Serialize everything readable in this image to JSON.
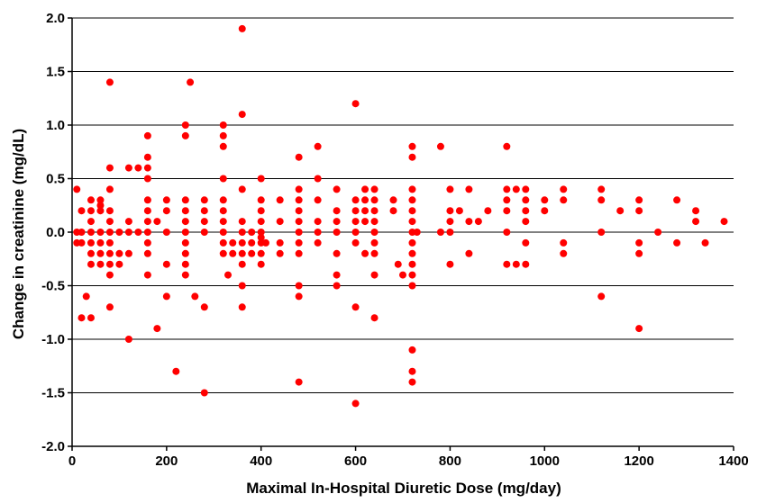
{
  "chart_data": {
    "type": "scatter",
    "title": "",
    "xlabel": "Maximal In-Hospital Diuretic Dose (mg/day)",
    "ylabel": "Change in creatinine (mg/dL)",
    "xlim": [
      0,
      1400
    ],
    "ylim": [
      -2.0,
      2.0
    ],
    "x_ticks": [
      "0",
      "200",
      "400",
      "600",
      "800",
      "1000",
      "1200",
      "1400"
    ],
    "y_ticks": [
      "2.0",
      "1.5",
      "1.0",
      "0.5",
      "0.0",
      "-0.5",
      "-1.0",
      "-1.5",
      "-2.0"
    ],
    "grid": "horizontal",
    "legend": "none",
    "marker_color": "#ff0000",
    "series": [
      {
        "points": [
          [
            10,
            0.4
          ],
          [
            10,
            0.0
          ],
          [
            10,
            -0.1
          ],
          [
            20,
            0.0
          ],
          [
            20,
            -0.1
          ],
          [
            20,
            -0.8
          ],
          [
            20,
            0.2
          ],
          [
            30,
            -0.6
          ],
          [
            40,
            -0.8
          ],
          [
            40,
            0.3
          ],
          [
            40,
            0.2
          ],
          [
            40,
            0.1
          ],
          [
            40,
            0.0
          ],
          [
            40,
            -0.1
          ],
          [
            40,
            -0.2
          ],
          [
            40,
            -0.3
          ],
          [
            60,
            0.25
          ],
          [
            60,
            0.2
          ],
          [
            60,
            0.0
          ],
          [
            60,
            -0.1
          ],
          [
            60,
            -0.2
          ],
          [
            60,
            -0.3
          ],
          [
            60,
            0.3
          ],
          [
            80,
            1.4
          ],
          [
            80,
            0.6
          ],
          [
            80,
            0.4
          ],
          [
            80,
            0.2
          ],
          [
            80,
            0.1
          ],
          [
            80,
            0.0
          ],
          [
            80,
            -0.1
          ],
          [
            80,
            -0.2
          ],
          [
            80,
            -0.3
          ],
          [
            80,
            -0.4
          ],
          [
            80,
            -0.7
          ],
          [
            100,
            0.0
          ],
          [
            100,
            -0.2
          ],
          [
            100,
            -0.3
          ],
          [
            120,
            0.6
          ],
          [
            120,
            0.1
          ],
          [
            120,
            0.0
          ],
          [
            120,
            -0.2
          ],
          [
            120,
            -1.0
          ],
          [
            140,
            0.6
          ],
          [
            140,
            0.0
          ],
          [
            160,
            0.9
          ],
          [
            160,
            0.7
          ],
          [
            160,
            0.6
          ],
          [
            160,
            0.5
          ],
          [
            160,
            0.3
          ],
          [
            160,
            0.2
          ],
          [
            160,
            0.1
          ],
          [
            160,
            0.0
          ],
          [
            160,
            -0.1
          ],
          [
            160,
            -0.2
          ],
          [
            160,
            -0.4
          ],
          [
            180,
            0.1
          ],
          [
            180,
            -0.9
          ],
          [
            200,
            0.3
          ],
          [
            200,
            0.2
          ],
          [
            200,
            0.0
          ],
          [
            200,
            -0.3
          ],
          [
            200,
            -0.6
          ],
          [
            220,
            -1.3
          ],
          [
            240,
            1.0
          ],
          [
            240,
            0.9
          ],
          [
            240,
            0.3
          ],
          [
            240,
            0.2
          ],
          [
            240,
            0.1
          ],
          [
            240,
            0.0
          ],
          [
            240,
            -0.1
          ],
          [
            240,
            -0.2
          ],
          [
            240,
            -0.3
          ],
          [
            240,
            -0.4
          ],
          [
            250,
            1.4
          ],
          [
            260,
            -0.6
          ],
          [
            280,
            0.3
          ],
          [
            280,
            0.2
          ],
          [
            280,
            0.1
          ],
          [
            280,
            0.0
          ],
          [
            280,
            -0.7
          ],
          [
            280,
            -1.5
          ],
          [
            320,
            1.0
          ],
          [
            320,
            0.9
          ],
          [
            320,
            0.8
          ],
          [
            320,
            0.5
          ],
          [
            320,
            0.3
          ],
          [
            320,
            0.2
          ],
          [
            320,
            0.1
          ],
          [
            320,
            0.0
          ],
          [
            320,
            -0.1
          ],
          [
            320,
            -0.2
          ],
          [
            330,
            -0.4
          ],
          [
            340,
            -0.1
          ],
          [
            340,
            -0.2
          ],
          [
            360,
            1.9
          ],
          [
            360,
            1.1
          ],
          [
            360,
            0.4
          ],
          [
            360,
            0.1
          ],
          [
            360,
            0.0
          ],
          [
            360,
            -0.1
          ],
          [
            360,
            -0.2
          ],
          [
            360,
            -0.3
          ],
          [
            360,
            -0.5
          ],
          [
            360,
            -0.7
          ],
          [
            380,
            0.0
          ],
          [
            380,
            -0.1
          ],
          [
            380,
            -0.2
          ],
          [
            400,
            0.5
          ],
          [
            400,
            0.3
          ],
          [
            400,
            0.2
          ],
          [
            400,
            0.1
          ],
          [
            400,
            0.0
          ],
          [
            400,
            -0.05
          ],
          [
            400,
            -0.1
          ],
          [
            400,
            -0.2
          ],
          [
            400,
            -0.3
          ],
          [
            410,
            -0.1
          ],
          [
            440,
            0.3
          ],
          [
            440,
            0.1
          ],
          [
            440,
            -0.1
          ],
          [
            440,
            -0.2
          ],
          [
            480,
            0.7
          ],
          [
            480,
            0.4
          ],
          [
            480,
            0.3
          ],
          [
            480,
            0.2
          ],
          [
            480,
            0.1
          ],
          [
            480,
            0.0
          ],
          [
            480,
            -0.1
          ],
          [
            480,
            -0.2
          ],
          [
            480,
            -0.5
          ],
          [
            480,
            -0.6
          ],
          [
            480,
            -1.4
          ],
          [
            520,
            0.8
          ],
          [
            520,
            0.5
          ],
          [
            520,
            0.3
          ],
          [
            520,
            0.1
          ],
          [
            520,
            0.0
          ],
          [
            520,
            -0.1
          ],
          [
            560,
            0.4
          ],
          [
            560,
            0.2
          ],
          [
            560,
            0.1
          ],
          [
            560,
            0.0
          ],
          [
            560,
            -0.2
          ],
          [
            560,
            -0.4
          ],
          [
            560,
            -0.5
          ],
          [
            600,
            1.2
          ],
          [
            600,
            0.3
          ],
          [
            600,
            0.2
          ],
          [
            600,
            0.1
          ],
          [
            600,
            0.0
          ],
          [
            600,
            -0.1
          ],
          [
            600,
            -0.7
          ],
          [
            600,
            -1.6
          ],
          [
            620,
            0.4
          ],
          [
            620,
            0.3
          ],
          [
            620,
            0.2
          ],
          [
            620,
            0.1
          ],
          [
            620,
            -0.2
          ],
          [
            640,
            0.4
          ],
          [
            640,
            0.3
          ],
          [
            640,
            0.2
          ],
          [
            640,
            0.1
          ],
          [
            640,
            0.0
          ],
          [
            640,
            -0.1
          ],
          [
            640,
            -0.2
          ],
          [
            640,
            -0.4
          ],
          [
            640,
            -0.8
          ],
          [
            680,
            0.3
          ],
          [
            680,
            0.2
          ],
          [
            690,
            -0.3
          ],
          [
            700,
            -0.4
          ],
          [
            720,
            0.8
          ],
          [
            720,
            0.7
          ],
          [
            720,
            0.4
          ],
          [
            720,
            0.3
          ],
          [
            720,
            0.2
          ],
          [
            720,
            0.1
          ],
          [
            720,
            0.0
          ],
          [
            720,
            -0.1
          ],
          [
            720,
            -0.2
          ],
          [
            720,
            -0.3
          ],
          [
            720,
            -0.4
          ],
          [
            720,
            -0.5
          ],
          [
            720,
            -1.1
          ],
          [
            720,
            -1.3
          ],
          [
            720,
            -1.4
          ],
          [
            730,
            0.0
          ],
          [
            780,
            0.8
          ],
          [
            780,
            0.0
          ],
          [
            800,
            0.4
          ],
          [
            800,
            0.2
          ],
          [
            800,
            0.1
          ],
          [
            800,
            0.0
          ],
          [
            800,
            -0.3
          ],
          [
            820,
            0.2
          ],
          [
            840,
            0.4
          ],
          [
            840,
            0.1
          ],
          [
            840,
            -0.2
          ],
          [
            860,
            0.1
          ],
          [
            880,
            0.2
          ],
          [
            920,
            0.8
          ],
          [
            920,
            0.4
          ],
          [
            920,
            0.3
          ],
          [
            920,
            0.2
          ],
          [
            920,
            0.0
          ],
          [
            920,
            -0.3
          ],
          [
            940,
            0.4
          ],
          [
            940,
            -0.3
          ],
          [
            960,
            0.4
          ],
          [
            960,
            0.3
          ],
          [
            960,
            0.2
          ],
          [
            960,
            0.1
          ],
          [
            960,
            -0.1
          ],
          [
            960,
            -0.3
          ],
          [
            1000,
            0.3
          ],
          [
            1000,
            0.2
          ],
          [
            1040,
            0.4
          ],
          [
            1040,
            0.3
          ],
          [
            1040,
            -0.1
          ],
          [
            1040,
            -0.2
          ],
          [
            1120,
            0.4
          ],
          [
            1120,
            0.3
          ],
          [
            1120,
            0.0
          ],
          [
            1120,
            -0.6
          ],
          [
            1160,
            0.2
          ],
          [
            1200,
            0.3
          ],
          [
            1200,
            0.2
          ],
          [
            1200,
            -0.1
          ],
          [
            1200,
            -0.2
          ],
          [
            1200,
            -0.9
          ],
          [
            1240,
            0.0
          ],
          [
            1280,
            0.3
          ],
          [
            1280,
            -0.1
          ],
          [
            1320,
            0.2
          ],
          [
            1320,
            0.1
          ],
          [
            1340,
            -0.1
          ],
          [
            1380,
            0.1
          ]
        ]
      }
    ]
  }
}
